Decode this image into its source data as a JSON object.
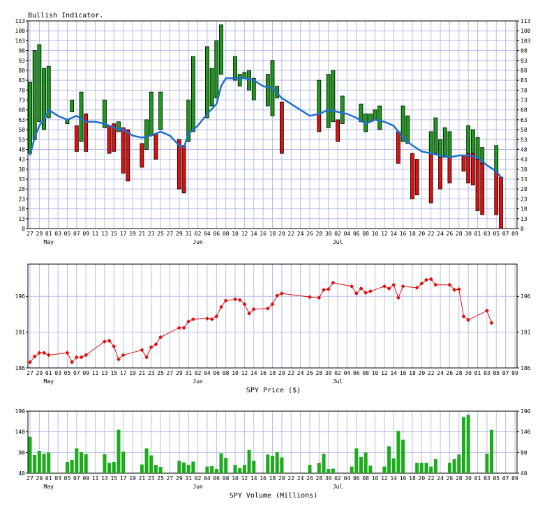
{
  "colors": {
    "up": "#1a9b1a",
    "down": "#e01010",
    "avg": "#1f6fd0",
    "price": "#e01010",
    "volume": "#1aac1a",
    "grid": "#b8bee8"
  },
  "x_axis": {
    "day_labels": [
      "27",
      "29",
      "01",
      "03",
      "05",
      "07",
      "09",
      "11",
      "13",
      "15",
      "17",
      "19",
      "21",
      "23",
      "25",
      "27",
      "29",
      "31",
      "02",
      "04",
      "06",
      "08",
      "10",
      "12",
      "14",
      "16",
      "18",
      "20",
      "22",
      "24",
      "26",
      "28",
      "30",
      "02",
      "04",
      "06",
      "08",
      "10",
      "12",
      "14",
      "16",
      "18",
      "20",
      "22",
      "24",
      "26",
      "28",
      "30",
      "01",
      "03",
      "05",
      "07",
      "09"
    ],
    "months": [
      {
        "label": "May",
        "at": "01"
      },
      {
        "label": "Jun",
        "at": "02"
      },
      {
        "label": "Jul",
        "at": "02"
      }
    ],
    "month_index": [
      2,
      18,
      33
    ]
  },
  "chart_data": [
    {
      "type": "bar",
      "title": "Bullish Indicator.",
      "ylim": [
        8,
        113
      ],
      "yticks": [
        8,
        13,
        18,
        23,
        28,
        33,
        38,
        43,
        48,
        53,
        58,
        63,
        68,
        73,
        78,
        83,
        88,
        93,
        98,
        103,
        108,
        113
      ],
      "tick_labels": [
        "8",
        "13",
        "18",
        "23",
        "28",
        "33",
        "38",
        "43",
        "48",
        "53",
        "58",
        "63",
        "68",
        "73",
        "78",
        "83",
        "88",
        "93",
        "98",
        "103",
        "108",
        "113"
      ],
      "bars": [
        {
          "x": 0,
          "open": 46,
          "close": 82
        },
        {
          "x": 0.5,
          "open": 53,
          "close": 98
        },
        {
          "x": 1,
          "open": 62,
          "close": 101
        },
        {
          "x": 1.5,
          "open": 58,
          "close": 89
        },
        {
          "x": 2,
          "open": 64,
          "close": 90
        },
        {
          "x": 4,
          "open": 61,
          "close": 63
        },
        {
          "x": 4.5,
          "open": 67,
          "close": 73
        },
        {
          "x": 5,
          "open": 60,
          "close": 47
        },
        {
          "x": 5.5,
          "open": 52,
          "close": 77
        },
        {
          "x": 6,
          "open": 66,
          "close": 47
        },
        {
          "x": 8,
          "open": 59,
          "close": 73
        },
        {
          "x": 8.5,
          "open": 60,
          "close": 46
        },
        {
          "x": 9,
          "open": 61,
          "close": 47
        },
        {
          "x": 9.5,
          "open": 57,
          "close": 62
        },
        {
          "x": 10,
          "open": 59,
          "close": 36
        },
        {
          "x": 10.5,
          "open": 58,
          "close": 32
        },
        {
          "x": 12,
          "open": 51,
          "close": 39
        },
        {
          "x": 12.5,
          "open": 48,
          "close": 63
        },
        {
          "x": 13,
          "open": 55,
          "close": 77
        },
        {
          "x": 13.5,
          "open": 56,
          "close": 43
        },
        {
          "x": 14,
          "open": 58,
          "close": 77
        },
        {
          "x": 16,
          "open": 53,
          "close": 28
        },
        {
          "x": 16.5,
          "open": 50,
          "close": 26
        },
        {
          "x": 17,
          "open": 52,
          "close": 73
        },
        {
          "x": 17.5,
          "open": 57,
          "close": 95
        },
        {
          "x": 19,
          "open": 64,
          "close": 100
        },
        {
          "x": 19.5,
          "open": 70,
          "close": 89
        },
        {
          "x": 20,
          "open": 74,
          "close": 103
        },
        {
          "x": 20.5,
          "open": 86,
          "close": 111
        },
        {
          "x": 22,
          "open": 83,
          "close": 95
        },
        {
          "x": 22.5,
          "open": 80,
          "close": 86
        },
        {
          "x": 23,
          "open": 84,
          "close": 87
        },
        {
          "x": 23.5,
          "open": 78,
          "close": 88
        },
        {
          "x": 24,
          "open": 73,
          "close": 84
        },
        {
          "x": 25.5,
          "open": 70,
          "close": 86
        },
        {
          "x": 26,
          "open": 65,
          "close": 93
        },
        {
          "x": 26.5,
          "open": 74,
          "close": 80
        },
        {
          "x": 27,
          "open": 72,
          "close": 46
        },
        {
          "x": 31,
          "open": 66,
          "close": 83
        },
        {
          "x": 31,
          "open": 66,
          "close": 57
        },
        {
          "x": 32,
          "open": 59,
          "close": 86
        },
        {
          "x": 32.5,
          "open": 62,
          "close": 88
        },
        {
          "x": 33,
          "open": 63,
          "close": 52
        },
        {
          "x": 33.5,
          "open": 61,
          "close": 75
        },
        {
          "x": 35.5,
          "open": 62,
          "close": 71
        },
        {
          "x": 36,
          "open": 57,
          "close": 66
        },
        {
          "x": 36.5,
          "open": 62,
          "close": 66
        },
        {
          "x": 37,
          "open": 63,
          "close": 68
        },
        {
          "x": 37.5,
          "open": 58,
          "close": 70
        },
        {
          "x": 39.5,
          "open": 57,
          "close": 41
        },
        {
          "x": 40,
          "open": 52,
          "close": 70
        },
        {
          "x": 40.5,
          "open": 51,
          "close": 65
        },
        {
          "x": 41,
          "open": 46,
          "close": 23
        },
        {
          "x": 41.5,
          "open": 43,
          "close": 25
        },
        {
          "x": 43,
          "open": 46,
          "close": 57
        },
        {
          "x": 43,
          "open": 46,
          "close": 21
        },
        {
          "x": 43.5,
          "open": 46,
          "close": 64
        },
        {
          "x": 44,
          "open": 44,
          "close": 53
        },
        {
          "x": 44,
          "open": 44,
          "close": 28
        },
        {
          "x": 44.5,
          "open": 44,
          "close": 59
        },
        {
          "x": 45,
          "open": 44,
          "close": 57
        },
        {
          "x": 45,
          "open": 44,
          "close": 31
        },
        {
          "x": 46.5,
          "open": 45,
          "close": 37
        },
        {
          "x": 47,
          "open": 46,
          "close": 60
        },
        {
          "x": 47,
          "open": 46,
          "close": 31
        },
        {
          "x": 47.5,
          "open": 46,
          "close": 58
        },
        {
          "x": 47.5,
          "open": 46,
          "close": 30
        },
        {
          "x": 48,
          "open": 43,
          "close": 54
        },
        {
          "x": 48,
          "open": 43,
          "close": 17
        },
        {
          "x": 48.5,
          "open": 41,
          "close": 49
        },
        {
          "x": 48.5,
          "open": 41,
          "close": 15
        },
        {
          "x": 50,
          "open": 37,
          "close": 50
        },
        {
          "x": 50,
          "open": 37,
          "close": 15
        },
        {
          "x": 50.5,
          "open": 34,
          "close": 8
        }
      ],
      "average": [
        [
          0,
          45
        ],
        [
          0.5,
          54
        ],
        [
          1,
          60
        ],
        [
          1.5,
          63
        ],
        [
          2,
          68
        ],
        [
          3,
          65
        ],
        [
          4,
          63
        ],
        [
          5,
          65
        ],
        [
          6,
          62
        ],
        [
          7,
          62
        ],
        [
          8,
          61
        ],
        [
          9,
          59
        ],
        [
          10,
          58
        ],
        [
          11,
          55
        ],
        [
          12,
          54
        ],
        [
          13,
          55
        ],
        [
          14,
          57
        ],
        [
          15,
          55
        ],
        [
          16,
          50
        ],
        [
          16.5,
          49
        ],
        [
          17,
          56
        ],
        [
          18,
          60
        ],
        [
          19,
          66
        ],
        [
          20,
          71
        ],
        [
          20.5,
          80
        ],
        [
          21,
          84
        ],
        [
          22,
          84
        ],
        [
          23,
          84
        ],
        [
          24,
          83
        ],
        [
          25,
          80
        ],
        [
          26,
          79
        ],
        [
          27,
          74
        ],
        [
          28,
          71
        ],
        [
          29,
          68
        ],
        [
          30,
          65
        ],
        [
          31,
          66
        ],
        [
          32,
          68
        ],
        [
          33,
          67
        ],
        [
          34,
          66
        ],
        [
          35,
          64
        ],
        [
          36,
          61
        ],
        [
          37,
          63
        ],
        [
          38,
          62
        ],
        [
          39,
          60
        ],
        [
          40,
          54
        ],
        [
          41,
          50
        ],
        [
          42,
          47
        ],
        [
          43,
          46
        ],
        [
          44,
          45
        ],
        [
          45,
          44
        ],
        [
          46,
          45
        ],
        [
          47,
          45
        ],
        [
          48,
          44
        ],
        [
          49,
          40
        ],
        [
          50,
          37
        ],
        [
          50.5,
          34
        ]
      ]
    },
    {
      "type": "line",
      "title": "",
      "xlabel": "SPY Price ($)",
      "ylim": [
        186,
        200.5
      ],
      "yticks": [
        186,
        191,
        196
      ],
      "tick_labels": [
        "186",
        "191",
        "196"
      ],
      "points": [
        [
          0,
          186.8
        ],
        [
          0.5,
          187.6
        ],
        [
          1,
          188.1
        ],
        [
          1.5,
          188.1
        ],
        [
          2,
          187.8
        ],
        [
          4,
          188.1
        ],
        [
          4.5,
          186.8
        ],
        [
          5,
          187.5
        ],
        [
          5.5,
          187.5
        ],
        [
          6,
          187.8
        ],
        [
          8,
          189.7
        ],
        [
          8.5,
          189.8
        ],
        [
          9,
          189.0
        ],
        [
          9.5,
          187.2
        ],
        [
          10,
          187.8
        ],
        [
          12,
          188.5
        ],
        [
          12.5,
          187.5
        ],
        [
          13,
          188.9
        ],
        [
          13.5,
          189.3
        ],
        [
          14,
          190.3
        ],
        [
          16,
          191.6
        ],
        [
          16.5,
          191.6
        ],
        [
          17,
          192.5
        ],
        [
          17.5,
          192.8
        ],
        [
          19,
          192.9
        ],
        [
          19.5,
          192.8
        ],
        [
          20,
          193.2
        ],
        [
          20.5,
          194.5
        ],
        [
          21,
          195.4
        ],
        [
          22,
          195.6
        ],
        [
          22.5,
          195.5
        ],
        [
          23,
          194.9
        ],
        [
          23.5,
          193.6
        ],
        [
          24,
          194.2
        ],
        [
          25.5,
          194.3
        ],
        [
          26,
          194.9
        ],
        [
          26.5,
          196.1
        ],
        [
          27,
          196.4
        ],
        [
          30,
          195.9
        ],
        [
          31,
          195.8
        ],
        [
          31.5,
          196.9
        ],
        [
          32,
          197.0
        ],
        [
          32.5,
          197.9
        ],
        [
          34.5,
          197.4
        ],
        [
          35,
          196.4
        ],
        [
          35.5,
          197.1
        ],
        [
          36,
          196.5
        ],
        [
          36.5,
          196.7
        ],
        [
          38,
          197.4
        ],
        [
          38.5,
          197.1
        ],
        [
          39,
          197.6
        ],
        [
          39.5,
          195.8
        ],
        [
          40,
          197.4
        ],
        [
          41.5,
          197.2
        ],
        [
          42,
          197.8
        ],
        [
          42.5,
          198.3
        ],
        [
          43,
          198.4
        ],
        [
          43.5,
          197.6
        ],
        [
          45,
          197.6
        ],
        [
          45.5,
          196.9
        ],
        [
          46,
          197.0
        ],
        [
          46.5,
          193.2
        ],
        [
          47,
          192.7
        ],
        [
          49,
          194.0
        ],
        [
          49.5,
          192.3
        ]
      ]
    },
    {
      "type": "bar",
      "title": "",
      "xlabel": "SPY Volume (Millions)",
      "ylim": [
        40,
        190
      ],
      "yticks": [
        40,
        90,
        140,
        190
      ],
      "tick_labels": [
        "40",
        "90",
        "140",
        "190"
      ],
      "values": [
        [
          0,
          128
        ],
        [
          0.5,
          84
        ],
        [
          1,
          94
        ],
        [
          1.5,
          87
        ],
        [
          2,
          90
        ],
        [
          4,
          67
        ],
        [
          4.5,
          72
        ],
        [
          5,
          100
        ],
        [
          5.5,
          91
        ],
        [
          6,
          86
        ],
        [
          8,
          86
        ],
        [
          8.5,
          65
        ],
        [
          9,
          67
        ],
        [
          9.5,
          145
        ],
        [
          10,
          92
        ],
        [
          12,
          61
        ],
        [
          12.5,
          100
        ],
        [
          13,
          83
        ],
        [
          13.5,
          60
        ],
        [
          14,
          55
        ],
        [
          16,
          70
        ],
        [
          16.5,
          66
        ],
        [
          17,
          60
        ],
        [
          17.5,
          68
        ],
        [
          19,
          56
        ],
        [
          19.5,
          57
        ],
        [
          20,
          50
        ],
        [
          20.5,
          88
        ],
        [
          21,
          77
        ],
        [
          22,
          60
        ],
        [
          22.5,
          52
        ],
        [
          23,
          60
        ],
        [
          23.5,
          96
        ],
        [
          24,
          70
        ],
        [
          25.5,
          85
        ],
        [
          26,
          82
        ],
        [
          26.5,
          91
        ],
        [
          27,
          78
        ],
        [
          30,
          60
        ],
        [
          31,
          65
        ],
        [
          31.5,
          87
        ],
        [
          32,
          50
        ],
        [
          32.5,
          51
        ],
        [
          34.5,
          56
        ],
        [
          35,
          100
        ],
        [
          35.5,
          79
        ],
        [
          36,
          90
        ],
        [
          36.5,
          58
        ],
        [
          38,
          56
        ],
        [
          38.5,
          105
        ],
        [
          39,
          76
        ],
        [
          39.5,
          142
        ],
        [
          40,
          121
        ],
        [
          41.5,
          65
        ],
        [
          42,
          65
        ],
        [
          42.5,
          65
        ],
        [
          43,
          56
        ],
        [
          43.5,
          74
        ],
        [
          45,
          65
        ],
        [
          45.5,
          74
        ],
        [
          46,
          85
        ],
        [
          46.5,
          176
        ],
        [
          47,
          181
        ],
        [
          49,
          87
        ],
        [
          49.5,
          145
        ]
      ]
    }
  ]
}
